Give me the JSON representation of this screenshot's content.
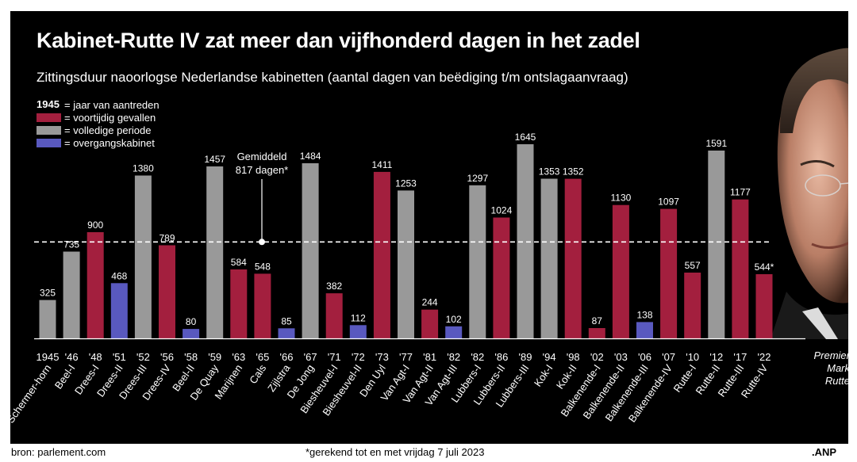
{
  "title": "Kabinet-Rutte IV zat meer dan vijfhonderd dagen in het zadel",
  "subtitle": "Zittingsduur naoorlogse Nederlandse kabinetten (aantal dagen van beëdiging t/m ontslagaanvraag)",
  "legend": {
    "year_sample": "1945",
    "year_text": "= jaar van aantreden",
    "items": [
      {
        "key": "early",
        "label": "= voortijdig gevallen",
        "color": "#a31f3e"
      },
      {
        "key": "full",
        "label": "= volledige periode",
        "color": "#999999"
      },
      {
        "key": "transition",
        "label": "= overgangskabinet",
        "color": "#5959bf"
      }
    ]
  },
  "average": {
    "line1": "Gemiddeld",
    "line2": "817 dagen*"
  },
  "premier": {
    "line1": "Premier",
    "line2": "Mark",
    "line3": "Rutte"
  },
  "footer": {
    "source": "bron:  parlement.com",
    "note": "*gerekend tot en met vrijdag 7 juli 2023",
    "logo": ".ANP"
  },
  "chart_data": {
    "type": "bar",
    "title": "Kabinet-Rutte IV zat meer dan vijfhonderd dagen in het zadel",
    "subtitle": "Zittingsduur naoorlogse Nederlandse kabinetten (aantal dagen van beëdiging t/m ontslagaanvraag)",
    "average": 817,
    "ylim": [
      0,
      1700
    ],
    "colors": {
      "early": "#a31f3e",
      "full": "#999999",
      "transition": "#5959bf"
    },
    "bars": [
      {
        "year": "1945",
        "name": "Schermer-horn",
        "value": 325,
        "kind": "full",
        "label": "325"
      },
      {
        "year": "'46",
        "name": "Beel-I",
        "value": 735,
        "kind": "full",
        "label": "735"
      },
      {
        "year": "'48",
        "name": "Drees-I",
        "value": 900,
        "kind": "early",
        "label": "900"
      },
      {
        "year": "'51",
        "name": "Drees-II",
        "value": 468,
        "kind": "transition",
        "label": "468"
      },
      {
        "year": "'52",
        "name": "Drees-III",
        "value": 1380,
        "kind": "full",
        "label": "1380"
      },
      {
        "year": "'56",
        "name": "Drees-IV",
        "value": 789,
        "kind": "early",
        "label": "789"
      },
      {
        "year": "'58",
        "name": "Beel-II",
        "value": 80,
        "kind": "transition",
        "label": "80"
      },
      {
        "year": "'59",
        "name": "De Quay",
        "value": 1457,
        "kind": "full",
        "label": "1457"
      },
      {
        "year": "'63",
        "name": "Marijnen",
        "value": 584,
        "kind": "early",
        "label": "584"
      },
      {
        "year": "'65",
        "name": "Cals",
        "value": 548,
        "kind": "early",
        "label": "548"
      },
      {
        "year": "'66",
        "name": "Zijlstra",
        "value": 85,
        "kind": "transition",
        "label": "85"
      },
      {
        "year": "'67",
        "name": "De Jong",
        "value": 1484,
        "kind": "full",
        "label": "1484"
      },
      {
        "year": "'71",
        "name": "Biesheuvel-I",
        "value": 382,
        "kind": "early",
        "label": "382"
      },
      {
        "year": "'72",
        "name": "Biesheuvel-II",
        "value": 112,
        "kind": "transition",
        "label": "112"
      },
      {
        "year": "'73",
        "name": "Den Uyl",
        "value": 1411,
        "kind": "early",
        "label": "1411"
      },
      {
        "year": "'77",
        "name": "Van Agt-I",
        "value": 1253,
        "kind": "full",
        "label": "1253"
      },
      {
        "year": "'81",
        "name": "Van Agt-II",
        "value": 244,
        "kind": "early",
        "label": "244"
      },
      {
        "year": "'82",
        "name": "Van Agt-III",
        "value": 102,
        "kind": "transition",
        "label": "102"
      },
      {
        "year": "'82",
        "name": "Lubbers-I",
        "value": 1297,
        "kind": "full",
        "label": "1297"
      },
      {
        "year": "'86",
        "name": "Lubbers-II",
        "value": 1024,
        "kind": "early",
        "label": "1024"
      },
      {
        "year": "'89",
        "name": "Lubbers-III",
        "value": 1645,
        "kind": "full",
        "label": "1645"
      },
      {
        "year": "'94",
        "name": "Kok-I",
        "value": 1353,
        "kind": "full",
        "label": "1353"
      },
      {
        "year": "'98",
        "name": "Kok-II",
        "value": 1352,
        "kind": "early",
        "label": "1352"
      },
      {
        "year": "'02",
        "name": "Balkenende-I",
        "value": 87,
        "kind": "early",
        "label": "87"
      },
      {
        "year": "'03",
        "name": "Balkenende-II",
        "value": 1130,
        "kind": "early",
        "label": "1130"
      },
      {
        "year": "'06",
        "name": "Balkenende-III",
        "value": 138,
        "kind": "transition",
        "label": "138"
      },
      {
        "year": "'07",
        "name": "Balkenende-IV",
        "value": 1097,
        "kind": "early",
        "label": "1097"
      },
      {
        "year": "'10",
        "name": "Rutte-I",
        "value": 557,
        "kind": "early",
        "label": "557"
      },
      {
        "year": "'12",
        "name": "Rutte-II",
        "value": 1591,
        "kind": "full",
        "label": "1591"
      },
      {
        "year": "'17",
        "name": "Rutte-III",
        "value": 1177,
        "kind": "early",
        "label": "1177"
      },
      {
        "year": "'22",
        "name": "Rutte-IV",
        "value": 544,
        "kind": "early",
        "label": "544*"
      }
    ]
  }
}
